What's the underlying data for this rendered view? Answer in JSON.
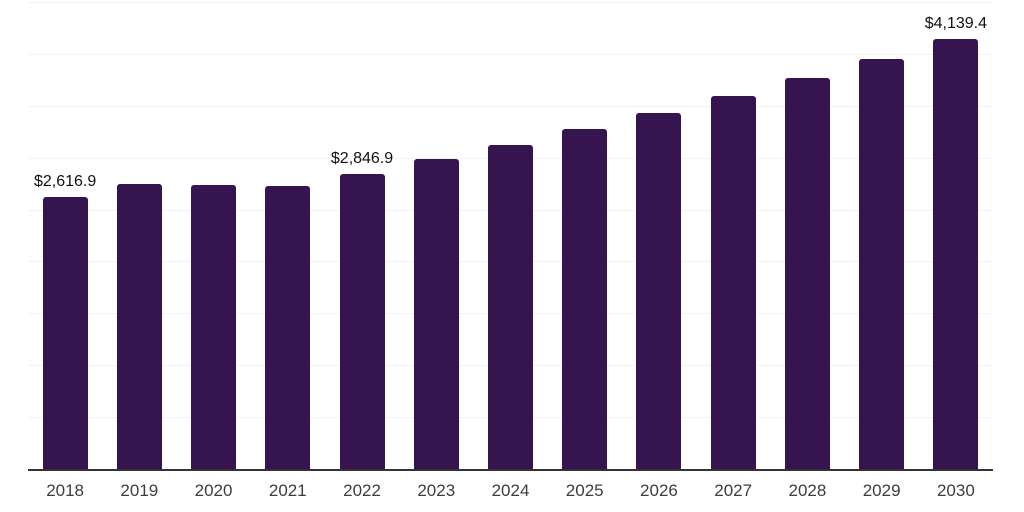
{
  "chart_data": {
    "type": "bar",
    "title": "",
    "xlabel": "",
    "ylabel": "",
    "categories": [
      "2018",
      "2019",
      "2020",
      "2021",
      "2022",
      "2023",
      "2024",
      "2025",
      "2026",
      "2027",
      "2028",
      "2029",
      "2030"
    ],
    "values": [
      2616.9,
      2745,
      2735,
      2725,
      2846.9,
      2983,
      3126,
      3276,
      3433,
      3597,
      3769,
      3950,
      4139.4
    ],
    "data_labels": [
      {
        "index": 0,
        "text": "$2,616.9"
      },
      {
        "index": 4,
        "text": "$2,846.9"
      },
      {
        "index": 12,
        "text": "$4,139.4"
      }
    ],
    "ylim": [
      0,
      4500
    ],
    "gridline_step": 500,
    "grid": "horizontal",
    "y_tick_labels_visible": false,
    "legend_position": "none",
    "colors": {
      "bar": "#361450",
      "axis_line": "#333333",
      "gridline": "#f2f2f2",
      "tick_label": "#3d3d3d",
      "data_label": "#111111",
      "background": "#ffffff"
    }
  }
}
